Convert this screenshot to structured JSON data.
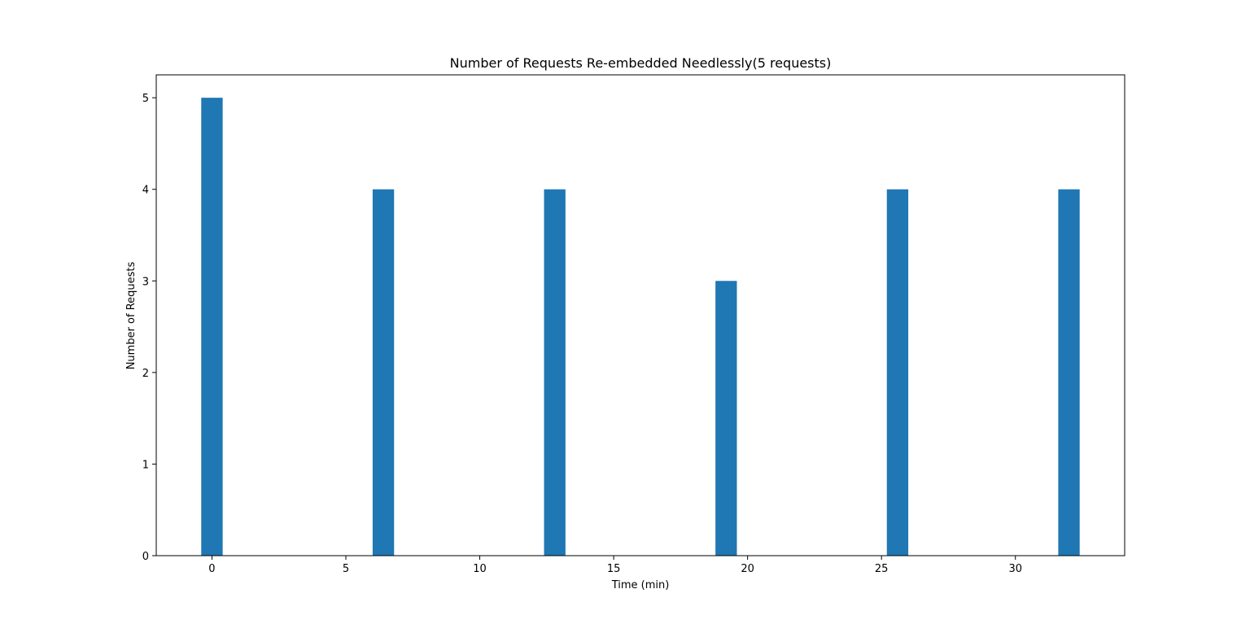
{
  "chart_data": {
    "type": "bar",
    "title": "Number of Requests Re-embedded Needlessly(5 requests)",
    "xlabel": "Time (min)",
    "ylabel": "Number of Requests",
    "x": [
      0,
      6.4,
      12.8,
      19.2,
      25.6,
      32
    ],
    "values": [
      5,
      4,
      4,
      3,
      4,
      4
    ],
    "bar_width": 0.8,
    "xlim": [
      -2.08,
      34.08
    ],
    "ylim": [
      0,
      5.25
    ],
    "xticks": [
      0,
      5,
      10,
      15,
      20,
      25,
      30
    ],
    "yticks": [
      0,
      1,
      2,
      3,
      4,
      5
    ],
    "grid": false,
    "colors": {
      "bar": "#1f77b4",
      "axis": "#000000",
      "background": "#ffffff"
    }
  }
}
